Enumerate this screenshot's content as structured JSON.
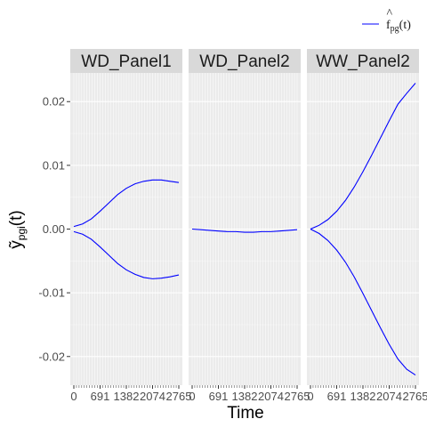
{
  "chart_data": {
    "type": "line",
    "xlabel": "Time",
    "ylabel": "ỹ",
    "ylabel_sub": "pgi",
    "ylabel_arg": "(t)",
    "ylim": [
      -0.0245,
      0.0245
    ],
    "xlim": [
      0,
      2765
    ],
    "y_ticks": [
      -0.02,
      -0.01,
      0.0,
      0.01,
      0.02
    ],
    "y_tick_labels": [
      "-0.02",
      "-0.01",
      "0.00",
      "0.01",
      "0.02"
    ],
    "x_ticks": [
      0,
      691,
      1382,
      2074,
      2765
    ],
    "x_tick_labels": [
      "0",
      "691",
      "1382",
      "2074",
      "2765"
    ],
    "grid": true,
    "legend": {
      "position": "top-right",
      "entries": [
        {
          "label_main": "f",
          "label_hat": "^",
          "label_sub": "pg",
          "label_arg": "(t)",
          "color": "#0000FF"
        }
      ]
    },
    "series_color": "#0000FF",
    "panels": [
      {
        "title": "WD_Panel1",
        "series": [
          {
            "x": [
              0,
              230,
              461,
              691,
              922,
              1152,
              1382,
              1613,
              1843,
              2074,
              2304,
              2535,
              2765
            ],
            "y": [
              0.0004,
              0.0008,
              0.0016,
              0.0028,
              0.0041,
              0.0054,
              0.0064,
              0.0071,
              0.0075,
              0.0077,
              0.0077,
              0.0075,
              0.0073
            ]
          },
          {
            "x": [
              0,
              230,
              461,
              691,
              922,
              1152,
              1382,
              1613,
              1843,
              2074,
              2304,
              2535,
              2765
            ],
            "y": [
              -0.0004,
              -0.0008,
              -0.0016,
              -0.0028,
              -0.0041,
              -0.0054,
              -0.0064,
              -0.0071,
              -0.0076,
              -0.0078,
              -0.0077,
              -0.0075,
              -0.0072
            ]
          }
        ]
      },
      {
        "title": "WD_Panel2",
        "series": [
          {
            "x": [
              0,
              230,
              461,
              691,
              922,
              1152,
              1382,
              1613,
              1843,
              2074,
              2304,
              2535,
              2765
            ],
            "y": [
              0.0,
              -0.0001,
              -0.0002,
              -0.0003,
              -0.0004,
              -0.0004,
              -0.0005,
              -0.0005,
              -0.0004,
              -0.0004,
              -0.0003,
              -0.0002,
              -0.0001
            ]
          }
        ]
      },
      {
        "title": "WW_Panel2",
        "series": [
          {
            "x": [
              0,
              230,
              461,
              691,
              922,
              1152,
              1382,
              1613,
              1843,
              2074,
              2304,
              2535,
              2765
            ],
            "y": [
              0.0,
              0.0006,
              0.0015,
              0.0028,
              0.0045,
              0.0066,
              0.009,
              0.0116,
              0.0143,
              0.017,
              0.0196,
              0.0213,
              0.0229
            ]
          },
          {
            "x": [
              0,
              230,
              461,
              691,
              922,
              1152,
              1382,
              1613,
              1843,
              2074,
              2304,
              2535,
              2765
            ],
            "y": [
              0.0,
              -0.0007,
              -0.0018,
              -0.0033,
              -0.0052,
              -0.0075,
              -0.0101,
              -0.0128,
              -0.0155,
              -0.0181,
              -0.0204,
              -0.022,
              -0.0229
            ]
          }
        ]
      }
    ]
  }
}
